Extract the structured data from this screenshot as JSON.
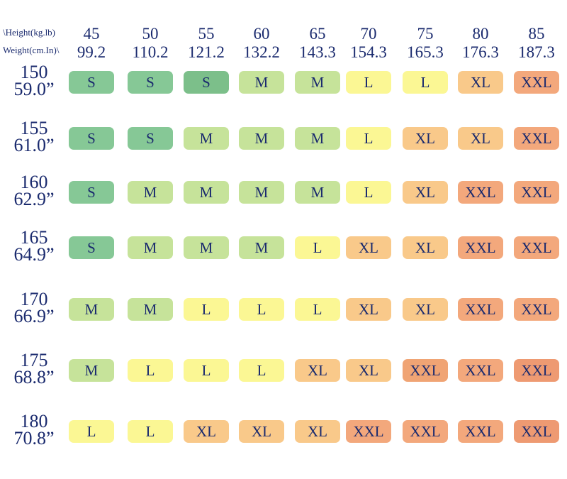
{
  "chart_data": {
    "type": "table",
    "corner_labels": [
      "\\Height(kg.lb)",
      "Weight(cm.In)\\"
    ],
    "columns": [
      {
        "kg": "45",
        "lb": "99.2"
      },
      {
        "kg": "50",
        "lb": "110.2"
      },
      {
        "kg": "55",
        "lb": "121.2"
      },
      {
        "kg": "60",
        "lb": "132.2"
      },
      {
        "kg": "65",
        "lb": "143.3"
      },
      {
        "kg": "70",
        "lb": "154.3"
      },
      {
        "kg": "75",
        "lb": "165.3"
      },
      {
        "kg": "80",
        "lb": "176.3"
      },
      {
        "kg": "85",
        "lb": "187.3"
      }
    ],
    "rows": [
      {
        "cm": "150",
        "in": "59.0”",
        "sizes": [
          "S",
          "S",
          "S",
          "M",
          "M",
          "L",
          "L",
          "XL",
          "XXL"
        ]
      },
      {
        "cm": "155",
        "in": "61.0”",
        "sizes": [
          "S",
          "S",
          "M",
          "M",
          "M",
          "L",
          "XL",
          "XL",
          "XXL"
        ]
      },
      {
        "cm": "160",
        "in": "62.9”",
        "sizes": [
          "S",
          "M",
          "M",
          "M",
          "M",
          "L",
          "XL",
          "XXL",
          "XXL"
        ]
      },
      {
        "cm": "165",
        "in": "64.9”",
        "sizes": [
          "S",
          "M",
          "M",
          "M",
          "L",
          "XL",
          "XL",
          "XXL",
          "XXL"
        ]
      },
      {
        "cm": "170",
        "in": "66.9”",
        "sizes": [
          "M",
          "M",
          "L",
          "L",
          "L",
          "XL",
          "XL",
          "XXL",
          "XXL"
        ]
      },
      {
        "cm": "175",
        "in": "68.8”",
        "sizes": [
          "M",
          "L",
          "L",
          "L",
          "XL",
          "XL",
          "XXL",
          "XXL",
          "XXL"
        ]
      },
      {
        "cm": "180",
        "in": "70.8”",
        "sizes": [
          "L",
          "L",
          "XL",
          "XL",
          "XL",
          "XXL",
          "XXL",
          "XXL",
          "XXL"
        ]
      }
    ],
    "size_colors": {
      "S": "#86c896",
      "M": "#c6e39a",
      "L": "#fbf794",
      "XL": "#f9c98a",
      "XXL": "#f3a87c"
    },
    "darker_cells": [
      {
        "row": 0,
        "col": 2,
        "color": "#7cbf8a"
      },
      {
        "row": 5,
        "col": 6,
        "color": "#f0a474"
      },
      {
        "row": 5,
        "col": 8,
        "color": "#ee9a72"
      },
      {
        "row": 6,
        "col": 8,
        "color": "#ee9a72"
      }
    ],
    "text_color": "#1a2a6e"
  }
}
